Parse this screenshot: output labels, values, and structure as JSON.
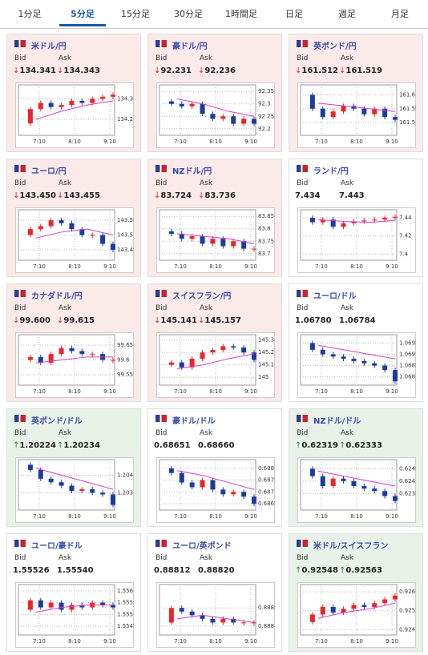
{
  "tabs": {
    "items": [
      "1分足",
      "5分足",
      "15分足",
      "30分足",
      "1時間足",
      "日足",
      "週足",
      "月足"
    ],
    "active": 1
  },
  "labels": {
    "bid": "Bid",
    "ask": "Ask"
  },
  "xticks": [
    "7:10",
    "8:10",
    "9:10"
  ],
  "colors": {
    "up": "#e8262d",
    "down": "#1c3c9c",
    "ma": "#d23ccc"
  },
  "cards": [
    {
      "name": "米ドル/円",
      "tone": "down",
      "arrow": "↓",
      "bid": "134.341",
      "ask": "134.343",
      "ylim": [
        134.13,
        134.36
      ],
      "yticks": [
        134.2,
        134.3
      ],
      "close": [
        134.18,
        134.25,
        134.28,
        134.26,
        134.27,
        134.29,
        134.28,
        134.3,
        134.31,
        134.32
      ],
      "ma": [
        134.2,
        134.24,
        134.27,
        134.29
      ]
    },
    {
      "name": "豪ドル/円",
      "tone": "down",
      "arrow": "↓",
      "bid": "92.231",
      "ask": "92.236",
      "ylim": [
        92.18,
        92.37
      ],
      "yticks": [
        92.2,
        92.25,
        92.3,
        92.35
      ],
      "close": [
        92.31,
        92.3,
        92.29,
        92.3,
        92.26,
        92.24,
        92.25,
        92.22,
        92.24,
        92.22
      ],
      "ma": [
        92.32,
        92.3,
        92.27,
        92.25
      ]
    },
    {
      "name": "英ポンド/円",
      "tone": "down",
      "arrow": "↓",
      "bid": "161.512",
      "ask": "161.519",
      "ylim": [
        161.46,
        161.63
      ],
      "yticks": [
        161.5,
        161.55,
        161.6
      ],
      "close": [
        161.6,
        161.55,
        161.52,
        161.54,
        161.56,
        161.55,
        161.53,
        161.55,
        161.52,
        161.51
      ],
      "ma": [
        161.57,
        161.56,
        161.55,
        161.54
      ]
    },
    {
      "name": "ユーロ/円",
      "tone": "down",
      "arrow": "↓",
      "bid": "143.450",
      "ask": "143.455",
      "ylim": [
        143.42,
        143.58
      ],
      "yticks": [
        143.45,
        143.5,
        143.55
      ],
      "close": [
        143.5,
        143.52,
        143.53,
        143.55,
        143.54,
        143.52,
        143.5,
        143.5,
        143.47,
        143.45
      ],
      "ma": [
        143.49,
        143.51,
        143.52,
        143.5
      ]
    },
    {
      "name": "NZドル/円",
      "tone": "down",
      "arrow": "↓",
      "bid": "83.724",
      "ask": "83.736",
      "ylim": [
        83.68,
        83.87
      ],
      "yticks": [
        83.7,
        83.75,
        83.8,
        83.85
      ],
      "close": [
        83.79,
        83.78,
        83.76,
        83.77,
        83.74,
        83.76,
        83.73,
        83.75,
        83.72,
        83.72
      ],
      "ma": [
        83.78,
        83.77,
        83.76,
        83.74
      ]
    },
    {
      "name": "ランド/円",
      "tone": "flat",
      "bid": "7.434",
      "ask": "7.443",
      "ylim": [
        7.395,
        7.447
      ],
      "yticks": [
        7.4,
        7.42,
        7.44
      ],
      "close": [
        7.44,
        7.435,
        7.438,
        7.43,
        7.434,
        7.436,
        7.437,
        7.438,
        7.44,
        7.441
      ],
      "ma": [
        7.438,
        7.436,
        7.435,
        7.437
      ]
    },
    {
      "name": "カナダドル/円",
      "tone": "down",
      "arrow": "↓",
      "bid": "99.600",
      "ask": "99.615",
      "ylim": [
        99.52,
        99.68
      ],
      "yticks": [
        99.55,
        99.6,
        99.65
      ],
      "close": [
        99.6,
        99.61,
        99.59,
        99.62,
        99.64,
        99.63,
        99.62,
        99.62,
        99.6,
        99.6
      ],
      "ma": [
        99.59,
        99.6,
        99.61,
        99.61
      ]
    },
    {
      "name": "スイスフラン/円",
      "tone": "down",
      "arrow": "↓",
      "bid": "145.141",
      "ask": "145.157",
      "ylim": [
        144.95,
        145.33
      ],
      "yticks": [
        145,
        145.1,
        145.2,
        145.3
      ],
      "close": [
        145.1,
        145.12,
        145.08,
        145.15,
        145.2,
        145.22,
        145.25,
        145.24,
        145.2,
        145.14
      ],
      "ma": [
        145.07,
        145.1,
        145.15,
        145.19
      ]
    },
    {
      "name": "ユーロ/ドル",
      "tone": "flat",
      "bid": "1.06780",
      "ask": "1.06784",
      "ylim": [
        1.0677,
        1.0698
      ],
      "yticks": [
        1.068,
        1.0685,
        1.069,
        1.0695
      ],
      "close": [
        1.0695,
        1.0692,
        1.069,
        1.0689,
        1.0688,
        1.0687,
        1.0686,
        1.0685,
        1.0683,
        1.0678
      ],
      "ma": [
        1.0694,
        1.0692,
        1.069,
        1.0688
      ]
    },
    {
      "name": "英ポンド/ドル",
      "tone": "up",
      "arrow": "↑",
      "bid": "1.20224",
      "ask": "1.20234",
      "ylim": [
        1.2021,
        1.2048
      ],
      "yticks": [
        1.203,
        1.204
      ],
      "close": [
        1.2046,
        1.2043,
        1.2038,
        1.2036,
        1.2034,
        1.2031,
        1.2032,
        1.203,
        1.2029,
        1.2023
      ],
      "ma": [
        1.2044,
        1.204,
        1.2036,
        1.2032
      ]
    },
    {
      "name": "豪ドル/ドル",
      "tone": "flat",
      "bid": "0.68651",
      "ask": "0.68660",
      "ylim": [
        0.6863,
        0.6883
      ],
      "yticks": [
        0.6865,
        0.687,
        0.6875,
        0.688
      ],
      "close": [
        0.688,
        0.6878,
        0.6874,
        0.6872,
        0.6875,
        0.6871,
        0.6869,
        0.687,
        0.6868,
        0.6865
      ],
      "ma": [
        0.6879,
        0.6877,
        0.6874,
        0.6871
      ]
    },
    {
      "name": "NZドル/ドル",
      "tone": "up",
      "arrow": "↑",
      "bid": "0.62319",
      "ask": "0.62333",
      "ylim": [
        0.6229,
        0.6248
      ],
      "yticks": [
        0.6235,
        0.624,
        0.6245
      ],
      "close": [
        0.6245,
        0.6242,
        0.6238,
        0.6241,
        0.624,
        0.6238,
        0.6237,
        0.6236,
        0.6234,
        0.6232
      ],
      "ma": [
        0.6244,
        0.6242,
        0.624,
        0.6238
      ]
    },
    {
      "name": "ユーロ/豪ドル",
      "tone": "flat",
      "bid": "1.55526",
      "ask": "1.55540",
      "ylim": [
        1.5542,
        1.5562
      ],
      "yticks": [
        1.5545,
        1.555,
        1.5555,
        1.556
      ],
      "close": [
        1.5552,
        1.5556,
        1.5553,
        1.5555,
        1.5552,
        1.5554,
        1.5553,
        1.5555,
        1.5554,
        1.5553
      ],
      "ma": [
        1.5551,
        1.5553,
        1.5554,
        1.5554
      ]
    },
    {
      "name": "ユーロ/英ポンド",
      "tone": "flat",
      "bid": "0.88812",
      "ask": "0.88820",
      "ylim": [
        0.8878,
        0.8891
      ],
      "yticks": [
        0.888,
        0.8885
      ],
      "close": [
        0.8881,
        0.8885,
        0.8884,
        0.8883,
        0.8882,
        0.8881,
        0.8882,
        0.8881,
        0.8881,
        0.8881
      ],
      "ma": [
        0.8882,
        0.8883,
        0.8882,
        0.8881
      ]
    },
    {
      "name": "米ドル/スイスフラン",
      "tone": "up",
      "arrow": "↑",
      "bid": "0.92548",
      "ask": "0.92563",
      "ylim": [
        0.9238,
        0.9263
      ],
      "yticks": [
        0.924,
        0.925,
        0.926
      ],
      "close": [
        0.9244,
        0.9248,
        0.9252,
        0.9249,
        0.9251,
        0.9253,
        0.9252,
        0.9254,
        0.9256,
        0.9258
      ],
      "ma": [
        0.9246,
        0.9249,
        0.9251,
        0.9254
      ]
    }
  ]
}
